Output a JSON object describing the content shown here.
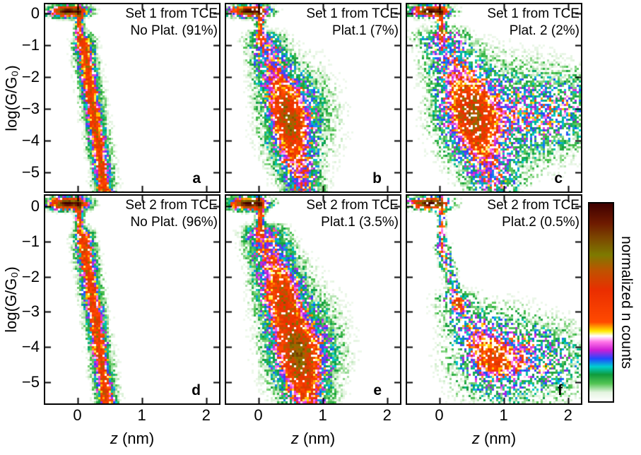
{
  "chart_data": {
    "type": "heatmap",
    "description": "2D density histograms of log conductance log(G/G0) versus electrode displacement z for break-junction measurement sets, classified by plateau type",
    "x_label_var": "z",
    "x_label_unit": " (nm)",
    "y_label": "log(G/G₀)",
    "x_ticks": [
      0,
      1,
      2
    ],
    "x_tick_labels": [
      "0",
      "1",
      "2"
    ],
    "y_ticks": [
      0,
      -1,
      -2,
      -3,
      -4,
      -5
    ],
    "y_tick_labels": [
      "0",
      "−1",
      "−2",
      "−3",
      "−4",
      "−5"
    ],
    "x_range": [
      -0.5,
      2.2
    ],
    "y_range": [
      0.3,
      -5.6
    ],
    "colormap_label": "normalized n counts",
    "colormap_stops": [
      {
        "pos": 0.0,
        "color": "#ffffff"
      },
      {
        "pos": 0.045,
        "color": "#e4f4e0"
      },
      {
        "pos": 0.09,
        "color": "#52c452"
      },
      {
        "pos": 0.135,
        "color": "#0f9b3c"
      },
      {
        "pos": 0.175,
        "color": "#00cfcf"
      },
      {
        "pos": 0.215,
        "color": "#1f49ff"
      },
      {
        "pos": 0.26,
        "color": "#cf1fd4"
      },
      {
        "pos": 0.3,
        "color": "#ff73e8"
      },
      {
        "pos": 0.33,
        "color": "#ffffff"
      },
      {
        "pos": 0.355,
        "color": "#ffe900"
      },
      {
        "pos": 0.4,
        "color": "#ff4a00"
      },
      {
        "pos": 0.56,
        "color": "#ea2e00"
      },
      {
        "pos": 0.66,
        "color": "#bf5200"
      },
      {
        "pos": 0.74,
        "color": "#7d7a00"
      },
      {
        "pos": 0.82,
        "color": "#7c4a00"
      },
      {
        "pos": 0.9,
        "color": "#6e1a00"
      },
      {
        "pos": 1.0,
        "color": "#3f0000"
      }
    ],
    "panels": [
      {
        "letter": "a",
        "row": 0,
        "col": 0,
        "set": "Set 1",
        "plateau": "No Plat.",
        "percent": "91%",
        "title_line1": "Set 1 from TCE",
        "title_line2": "No Plat. (91%)",
        "seed": 101,
        "dropout": 0.02,
        "components": [
          {
            "type": "gauss",
            "x": -0.15,
            "y": 0.08,
            "sx": 0.27,
            "sy": 0.16,
            "amp": 3.1
          },
          {
            "type": "gauss",
            "x": 0.03,
            "y": -0.3,
            "sx": 0.055,
            "sy": 0.5,
            "amp": 1.8
          },
          {
            "type": "band",
            "x0": 0.1,
            "y0": -0.9,
            "x1": 0.42,
            "y1": -5.6,
            "w": 0.11,
            "amp": 1.55
          },
          {
            "type": "band",
            "x0": 0.1,
            "y0": -0.9,
            "x1": 0.45,
            "y1": -5.6,
            "w": 0.22,
            "amp": 0.28
          }
        ]
      },
      {
        "letter": "b",
        "row": 0,
        "col": 1,
        "set": "Set 1",
        "plateau": "Plat.1",
        "percent": "7%",
        "title_line1": "Set 1 from TCE",
        "title_line2": "Plat.1 (7%)",
        "seed": 202,
        "dropout": 0.12,
        "components": [
          {
            "type": "gauss",
            "x": -0.15,
            "y": 0.08,
            "sx": 0.27,
            "sy": 0.16,
            "amp": 3.1
          },
          {
            "type": "gauss",
            "x": 0.03,
            "y": -0.3,
            "sx": 0.055,
            "sy": 0.5,
            "amp": 1.8
          },
          {
            "type": "band",
            "x0": 0.1,
            "y0": -0.8,
            "x1": 0.7,
            "y1": -5.5,
            "w": 0.26,
            "amp": 1.05
          },
          {
            "type": "gauss",
            "x": 0.55,
            "y": -3.25,
            "sx": 0.34,
            "sy": 1.15,
            "amp": 1.0
          },
          {
            "type": "gauss",
            "x": 0.65,
            "y": -3.3,
            "sx": 0.62,
            "sy": 1.7,
            "amp": 0.32
          }
        ]
      },
      {
        "letter": "c",
        "row": 0,
        "col": 2,
        "set": "Set 1",
        "plateau": "Plat. 2",
        "percent": "2%",
        "title_line1": "Set 1 from TCE",
        "title_line2": "Plat. 2 (2%)",
        "seed": 303,
        "dropout": 0.3,
        "components": [
          {
            "type": "gauss",
            "x": -0.15,
            "y": 0.08,
            "sx": 0.27,
            "sy": 0.16,
            "amp": 3.1
          },
          {
            "type": "gauss",
            "x": 0.03,
            "y": -0.3,
            "sx": 0.055,
            "sy": 0.5,
            "amp": 1.8
          },
          {
            "type": "band",
            "x0": 0.05,
            "y0": -0.7,
            "x1": 0.85,
            "y1": -5.4,
            "w": 0.36,
            "amp": 0.9
          },
          {
            "type": "gauss",
            "x": 0.5,
            "y": -3.1,
            "sx": 0.45,
            "sy": 1.25,
            "amp": 0.95
          },
          {
            "type": "gauss",
            "x": 1.35,
            "y": -3.2,
            "sx": 0.75,
            "sy": 1.25,
            "amp": 0.7
          },
          {
            "type": "gauss",
            "x": 2.05,
            "y": -2.9,
            "sx": 0.45,
            "sy": 0.9,
            "amp": 0.45
          },
          {
            "type": "gauss",
            "x": 1.0,
            "y": -3.2,
            "sx": 1.0,
            "sy": 1.8,
            "amp": 0.22
          }
        ]
      },
      {
        "letter": "d",
        "row": 1,
        "col": 0,
        "set": "Set 2",
        "plateau": "No Plat.",
        "percent": "96%",
        "title_line1": "Set 2 from TCE",
        "title_line2": "No Plat. (96%)",
        "seed": 404,
        "dropout": 0.02,
        "components": [
          {
            "type": "gauss",
            "x": -0.15,
            "y": 0.08,
            "sx": 0.27,
            "sy": 0.16,
            "amp": 3.1
          },
          {
            "type": "gauss",
            "x": 0.03,
            "y": -0.3,
            "sx": 0.055,
            "sy": 0.5,
            "amp": 1.8
          },
          {
            "type": "band",
            "x0": 0.1,
            "y0": -0.9,
            "x1": 0.46,
            "y1": -5.6,
            "w": 0.11,
            "amp": 1.5
          },
          {
            "type": "band",
            "x0": 0.1,
            "y0": -0.9,
            "x1": 0.48,
            "y1": -5.6,
            "w": 0.22,
            "amp": 0.28
          }
        ]
      },
      {
        "letter": "e",
        "row": 1,
        "col": 1,
        "set": "Set 2",
        "plateau": "Plat.1",
        "percent": "3.5%",
        "title_line1": "Set 2 from TCE",
        "title_line2": "Plat.1 (3.5%)",
        "seed": 505,
        "dropout": 0.1,
        "components": [
          {
            "type": "gauss",
            "x": -0.15,
            "y": 0.08,
            "sx": 0.27,
            "sy": 0.16,
            "amp": 3.1
          },
          {
            "type": "gauss",
            "x": 0.03,
            "y": -0.3,
            "sx": 0.055,
            "sy": 0.5,
            "amp": 1.8
          },
          {
            "type": "band",
            "x0": 0.1,
            "y0": -0.8,
            "x1": 0.75,
            "y1": -5.5,
            "w": 0.3,
            "amp": 1.1
          },
          {
            "type": "gauss",
            "x": 0.72,
            "y": -4.2,
            "sx": 0.4,
            "sy": 1.05,
            "amp": 1.1
          },
          {
            "type": "gauss",
            "x": 0.4,
            "y": -2.5,
            "sx": 0.3,
            "sy": 0.9,
            "amp": 0.75
          },
          {
            "type": "gauss",
            "x": 0.7,
            "y": -3.8,
            "sx": 0.65,
            "sy": 1.7,
            "amp": 0.3
          }
        ]
      },
      {
        "letter": "f",
        "row": 1,
        "col": 2,
        "set": "Set 2",
        "plateau": "Plat.2",
        "percent": "0.5%",
        "title_line1": "Set 2 from TCE",
        "title_line2": "Plat.2 (0.5%)",
        "seed": 606,
        "dropout": 0.38,
        "components": [
          {
            "type": "gauss",
            "x": -0.15,
            "y": 0.08,
            "sx": 0.27,
            "sy": 0.16,
            "amp": 3.1
          },
          {
            "type": "gauss",
            "x": 0.04,
            "y": -0.5,
            "sx": 0.05,
            "sy": 0.7,
            "amp": 1.5
          },
          {
            "type": "band",
            "x0": 0.06,
            "y0": -1.2,
            "x1": 0.3,
            "y1": -2.8,
            "w": 0.1,
            "amp": 0.9
          },
          {
            "type": "band",
            "x0": 0.25,
            "y0": -2.7,
            "x1": 0.85,
            "y1": -4.5,
            "w": 0.32,
            "amp": 0.65
          },
          {
            "type": "gauss",
            "x": 0.9,
            "y": -4.35,
            "sx": 0.55,
            "sy": 1.05,
            "amp": 0.9
          },
          {
            "type": "gauss",
            "x": 1.7,
            "y": -4.4,
            "sx": 0.55,
            "sy": 0.95,
            "amp": 0.6
          },
          {
            "type": "gauss",
            "x": 1.0,
            "y": -4.2,
            "sx": 0.9,
            "sy": 1.3,
            "amp": 0.2
          }
        ]
      }
    ]
  }
}
